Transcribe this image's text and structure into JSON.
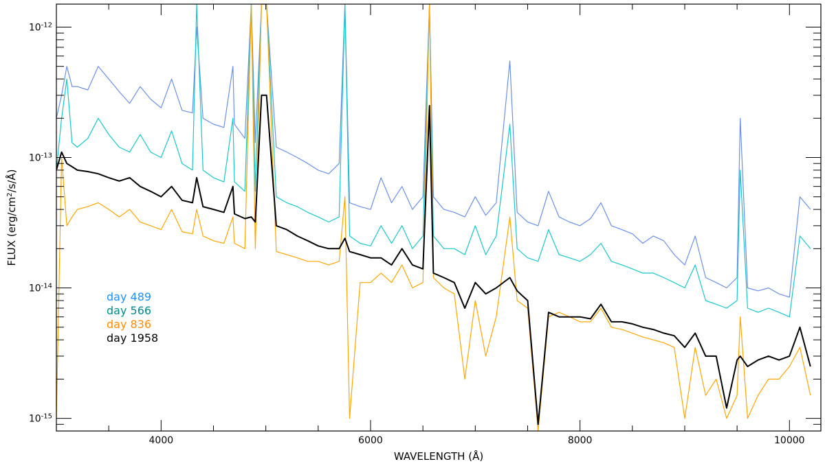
{
  "chart_data": {
    "type": "line",
    "title": "",
    "xlabel": "WAVELENGTH (Å)",
    "ylabel": "FLUX (erg/cm²/s/Å)",
    "ylabel_parts": [
      "FLUX (erg/cm",
      "2",
      "/s/Å)"
    ],
    "xlim": [
      3000,
      10300
    ],
    "ylim": [
      8e-16,
      1.5e-12
    ],
    "yscale": "log",
    "grid": false,
    "legend_position": "middle-left",
    "x_ticks": [
      4000,
      6000,
      8000,
      10000
    ],
    "x_tick_labels": [
      "4000",
      "6000",
      "8000",
      "10000"
    ],
    "y_tick_decades": [
      -15,
      -14,
      -13,
      -12
    ],
    "y_tick_labels": [
      {
        "base": "10",
        "exp": "-15"
      },
      {
        "base": "10",
        "exp": "-14"
      },
      {
        "base": "10",
        "exp": "-13"
      },
      {
        "base": "10",
        "exp": "-12"
      }
    ],
    "series": [
      {
        "name": "day 489",
        "color": "#6a8fe8",
        "label_color": "#1e90ff",
        "x": [
          3000,
          3050,
          3100,
          3150,
          3200,
          3300,
          3400,
          3500,
          3600,
          3700,
          3800,
          3900,
          4000,
          4100,
          4200,
          4300,
          4340,
          4400,
          4500,
          4600,
          4686,
          4700,
          4800,
          4861,
          4900,
          4959,
          5007,
          5100,
          5200,
          5300,
          5400,
          5500,
          5600,
          5700,
          5755,
          5800,
          5900,
          6000,
          6100,
          6200,
          6300,
          6400,
          6500,
          6563,
          6600,
          6700,
          6800,
          6900,
          7000,
          7100,
          7200,
          7330,
          7400,
          7500,
          7600,
          7700,
          7800,
          7900,
          8000,
          8100,
          8200,
          8300,
          8400,
          8500,
          8600,
          8700,
          8800,
          8900,
          9000,
          9100,
          9200,
          9300,
          9400,
          9500,
          9530,
          9600,
          9700,
          9800,
          9900,
          10000,
          10100,
          10200
        ],
        "values": [
          2e-13,
          3e-13,
          5e-13,
          3.5e-13,
          3.5e-13,
          3.3e-13,
          5e-13,
          4e-13,
          3.2e-13,
          2.6e-13,
          3.5e-13,
          2.8e-13,
          2.4e-13,
          4e-13,
          2.3e-13,
          2.2e-13,
          1e-12,
          2e-13,
          1.8e-13,
          1.7e-13,
          5e-13,
          1.8e-13,
          1.4e-13,
          1.5e-12,
          1.3e-13,
          1.5e-12,
          1.5e-12,
          1.2e-13,
          1.1e-13,
          1e-13,
          9e-14,
          8e-14,
          7.5e-14,
          9e-14,
          1.5e-12,
          4.5e-14,
          4.2e-14,
          4e-14,
          7e-14,
          4.5e-14,
          6e-14,
          4e-14,
          5e-14,
          1.5e-12,
          5e-14,
          4e-14,
          3.8e-14,
          3.5e-14,
          5e-14,
          3.6e-14,
          4.5e-14,
          5.5e-13,
          3.8e-14,
          3.2e-14,
          3e-14,
          5.5e-14,
          3.5e-14,
          3.2e-14,
          3e-14,
          3.4e-14,
          4.5e-14,
          3e-14,
          2.8e-14,
          2.6e-14,
          2.2e-14,
          2.5e-14,
          2.3e-14,
          1.8e-14,
          1.5e-14,
          2.5e-14,
          1.2e-14,
          1.1e-14,
          1e-14,
          1.2e-14,
          2e-13,
          1e-14,
          9.5e-15,
          1e-14,
          9e-15,
          8.5e-15,
          5e-14,
          4e-14
        ]
      },
      {
        "name": "day 566",
        "color": "#17c6c9",
        "label_color": "#008b8b",
        "x": [
          3000,
          3050,
          3100,
          3150,
          3200,
          3300,
          3400,
          3500,
          3600,
          3700,
          3800,
          3900,
          4000,
          4100,
          4200,
          4300,
          4340,
          4400,
          4500,
          4600,
          4686,
          4700,
          4800,
          4861,
          4900,
          4959,
          5007,
          5100,
          5200,
          5300,
          5400,
          5500,
          5600,
          5700,
          5755,
          5800,
          5900,
          6000,
          6100,
          6200,
          6300,
          6400,
          6500,
          6563,
          6600,
          6700,
          6800,
          6900,
          7000,
          7100,
          7200,
          7330,
          7400,
          7500,
          7600,
          7700,
          7800,
          7900,
          8000,
          8100,
          8200,
          8300,
          8400,
          8500,
          8600,
          8700,
          8800,
          8900,
          9000,
          9100,
          9200,
          9300,
          9400,
          9500,
          9530,
          9600,
          9700,
          9800,
          9900,
          10000,
          10100,
          10200
        ],
        "values": [
          8e-14,
          2e-13,
          4e-13,
          1.3e-13,
          1.2e-13,
          1.4e-13,
          2e-13,
          1.5e-13,
          1.2e-13,
          1.1e-13,
          1.5e-13,
          1.1e-13,
          1e-13,
          1.6e-13,
          9e-14,
          8e-14,
          1.5e-12,
          8e-14,
          7e-14,
          6.5e-14,
          2e-13,
          6.5e-14,
          5.5e-14,
          1.5e-12,
          5.5e-14,
          1.5e-12,
          1.5e-12,
          5e-14,
          4.5e-14,
          4.2e-14,
          3.8e-14,
          3.5e-14,
          3.2e-14,
          3.5e-14,
          1.5e-12,
          2.5e-14,
          2.2e-14,
          2.1e-14,
          3e-14,
          2.2e-14,
          3e-14,
          2e-14,
          2.5e-14,
          1.5e-12,
          2.5e-14,
          2e-14,
          2e-14,
          1.8e-14,
          3e-14,
          1.8e-14,
          2.5e-14,
          1.8e-13,
          2e-14,
          1.7e-14,
          1.6e-14,
          2.8e-14,
          1.8e-14,
          1.7e-14,
          1.6e-14,
          1.8e-14,
          2.2e-14,
          1.6e-14,
          1.5e-14,
          1.4e-14,
          1.3e-14,
          1.3e-14,
          1.2e-14,
          1.1e-14,
          1e-14,
          1.5e-14,
          8e-15,
          7.5e-15,
          7e-15,
          8e-15,
          8e-14,
          7e-15,
          6.5e-15,
          7e-15,
          6.5e-15,
          6e-15,
          2.5e-14,
          2e-14
        ]
      },
      {
        "name": "day 836",
        "color": "#ffa500",
        "label_color": "#ff8c00",
        "x": [
          3000,
          3050,
          3100,
          3150,
          3200,
          3300,
          3400,
          3500,
          3600,
          3700,
          3800,
          3900,
          4000,
          4100,
          4200,
          4300,
          4340,
          4400,
          4500,
          4600,
          4686,
          4700,
          4800,
          4861,
          4900,
          4959,
          5007,
          5100,
          5200,
          5300,
          5400,
          5500,
          5600,
          5700,
          5755,
          5800,
          5900,
          6000,
          6100,
          6200,
          6300,
          6400,
          6500,
          6563,
          6600,
          6700,
          6800,
          6900,
          7000,
          7100,
          7200,
          7330,
          7400,
          7500,
          7600,
          7700,
          7800,
          7900,
          8000,
          8100,
          8200,
          8300,
          8400,
          8500,
          8600,
          8700,
          8800,
          8900,
          9000,
          9100,
          9200,
          9300,
          9400,
          9500,
          9530,
          9600,
          9700,
          9800,
          9900,
          10000,
          10100,
          10200
        ],
        "values": [
          1e-15,
          1e-13,
          3e-14,
          3.5e-14,
          4e-14,
          4.2e-14,
          4.5e-14,
          4e-14,
          3.5e-14,
          4e-14,
          3.2e-14,
          3e-14,
          2.8e-14,
          4e-14,
          2.7e-14,
          2.6e-14,
          4e-14,
          2.5e-14,
          2.3e-14,
          2.2e-14,
          3.5e-14,
          2.2e-14,
          2e-14,
          1.5e-12,
          2e-14,
          1.5e-12,
          1.5e-12,
          1.9e-14,
          1.8e-14,
          1.7e-14,
          1.6e-14,
          1.6e-14,
          1.5e-14,
          1.6e-14,
          5e-14,
          1e-15,
          1.1e-14,
          1.1e-14,
          1.3e-14,
          1.1e-14,
          1.5e-14,
          1e-14,
          1.1e-14,
          1.5e-12,
          1.2e-14,
          1e-14,
          9e-15,
          2e-15,
          8e-15,
          3e-15,
          6e-15,
          3.5e-14,
          8e-15,
          7e-15,
          8e-16,
          6e-15,
          6.5e-15,
          6e-15,
          5.5e-15,
          5.5e-15,
          7e-15,
          5e-15,
          4.8e-15,
          4.5e-15,
          4.2e-15,
          4e-15,
          3.8e-15,
          3.5e-15,
          1e-15,
          3.5e-15,
          1.5e-15,
          2e-15,
          1e-15,
          1.5e-15,
          6e-15,
          1e-15,
          1.5e-15,
          2e-15,
          2e-15,
          2.5e-15,
          3.5e-15,
          1.5e-15
        ]
      },
      {
        "name": "day 1958",
        "color": "#000000",
        "label_color": "#000000",
        "x": [
          3000,
          3050,
          3100,
          3150,
          3200,
          3300,
          3400,
          3500,
          3600,
          3700,
          3800,
          3900,
          4000,
          4100,
          4200,
          4300,
          4340,
          4400,
          4500,
          4600,
          4686,
          4700,
          4800,
          4861,
          4900,
          4959,
          5007,
          5100,
          5200,
          5300,
          5400,
          5500,
          5600,
          5700,
          5755,
          5800,
          5900,
          6000,
          6100,
          6200,
          6300,
          6400,
          6500,
          6563,
          6600,
          6700,
          6800,
          6900,
          7000,
          7100,
          7200,
          7330,
          7400,
          7500,
          7600,
          7700,
          7800,
          7900,
          8000,
          8100,
          8200,
          8300,
          8400,
          8500,
          8600,
          8700,
          8800,
          8900,
          9000,
          9100,
          9200,
          9300,
          9400,
          9500,
          9530,
          9600,
          9700,
          9800,
          9900,
          10000,
          10100,
          10200
        ],
        "values": [
          8e-14,
          1.1e-13,
          9e-14,
          8.5e-14,
          8e-14,
          7.8e-14,
          7.5e-14,
          7e-14,
          6.6e-14,
          7e-14,
          6e-14,
          5.5e-14,
          5e-14,
          6e-14,
          4.7e-14,
          4.5e-14,
          7e-14,
          4.2e-14,
          4e-14,
          3.8e-14,
          6e-14,
          3.7e-14,
          3.4e-14,
          3.5e-14,
          3.2e-14,
          3e-13,
          3e-13,
          3e-14,
          2.8e-14,
          2.5e-14,
          2.3e-14,
          2.1e-14,
          2e-14,
          2e-14,
          2.4e-14,
          1.9e-14,
          1.8e-14,
          1.7e-14,
          1.7e-14,
          1.5e-14,
          2e-14,
          1.5e-14,
          1.4e-14,
          2.5e-13,
          1.3e-14,
          1.2e-14,
          1.1e-14,
          7e-15,
          1.1e-14,
          9e-15,
          1e-14,
          1.2e-14,
          9.5e-15,
          8e-15,
          9e-16,
          6.5e-15,
          6e-15,
          6e-15,
          6e-15,
          5.8e-15,
          7.5e-15,
          5.5e-15,
          5.5e-15,
          5.3e-15,
          5e-15,
          4.8e-15,
          4.5e-15,
          4.3e-15,
          3.5e-15,
          4.5e-15,
          3e-15,
          3e-15,
          1.2e-15,
          2.8e-15,
          3e-15,
          2.5e-15,
          2.8e-15,
          3e-15,
          2.8e-15,
          3e-15,
          5e-15,
          2.5e-15
        ]
      }
    ]
  }
}
